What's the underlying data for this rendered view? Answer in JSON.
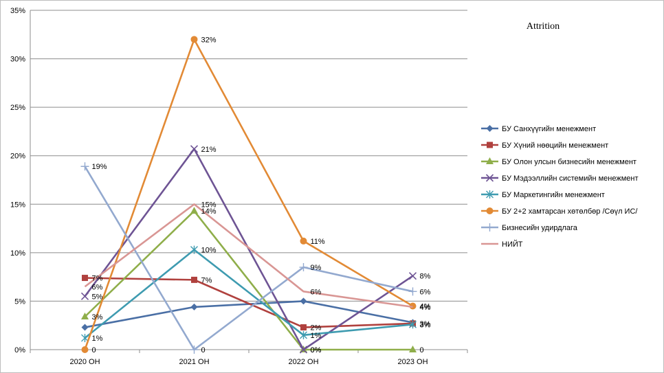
{
  "chart_data": {
    "type": "line",
    "title": "Attrition",
    "categories": [
      "2020 ОН",
      "2021 ОН",
      "2022 ОН",
      "2023 ОН"
    ],
    "ylim": [
      0,
      0.35
    ],
    "yticks": [
      "0%",
      "5%",
      "10%",
      "15%",
      "20%",
      "25%",
      "30%",
      "35%"
    ],
    "grid": true,
    "legend_position": "right",
    "series": [
      {
        "name": "БУ Санхүүгийн менежмент",
        "color": "#4a6fa5",
        "marker": "diamond",
        "values": [
          0.023,
          0.044,
          0.05,
          0.028
        ],
        "labels": [
          "",
          "",
          "",
          ""
        ]
      },
      {
        "name": "БУ Хүний нөөцийн менежмент",
        "color": "#b0413e",
        "marker": "square",
        "values": [
          0.074,
          0.072,
          0.023,
          0.027
        ],
        "labels": [
          "7%",
          "7%",
          "2%",
          "3%"
        ]
      },
      {
        "name": "БУ Олон улсын бизнесийн менежмент",
        "color": "#8fae4a",
        "marker": "triangle",
        "values": [
          0.034,
          0.143,
          0.0,
          0.0
        ],
        "labels": [
          "3%",
          "14%",
          "0%",
          "0"
        ]
      },
      {
        "name": "БУ Мэдээллийн системийн менежмент",
        "color": "#6e5494",
        "marker": "x",
        "values": [
          0.055,
          0.207,
          0.0,
          0.076
        ],
        "labels": [
          "5%",
          "21%",
          "0%",
          "8%"
        ]
      },
      {
        "name": "БУ Маркетингийн менежмент",
        "color": "#3e9bb0",
        "marker": "star",
        "values": [
          0.012,
          0.103,
          0.015,
          0.026
        ],
        "labels": [
          "1%",
          "10%",
          "1%",
          "3%"
        ]
      },
      {
        "name": "БУ 2+2 хамтарсан хөтөлбөр /Сөүл ИС/",
        "color": "#e28a35",
        "marker": "circle",
        "values": [
          0.0,
          0.32,
          0.112,
          0.045
        ],
        "labels": [
          "0",
          "32%",
          "11%",
          "4%"
        ]
      },
      {
        "name": "Бизнесийн удирдлага",
        "color": "#93a9cf",
        "marker": "plus",
        "values": [
          0.189,
          0.0,
          0.085,
          0.06
        ],
        "labels": [
          "19%",
          "0",
          "9%",
          "6%"
        ]
      },
      {
        "name": "НИЙТ",
        "color": "#d99694",
        "marker": "none",
        "values": [
          0.065,
          0.15,
          0.06,
          0.044
        ],
        "labels": [
          "6%",
          "15%",
          "6%",
          "4%"
        ]
      }
    ]
  }
}
